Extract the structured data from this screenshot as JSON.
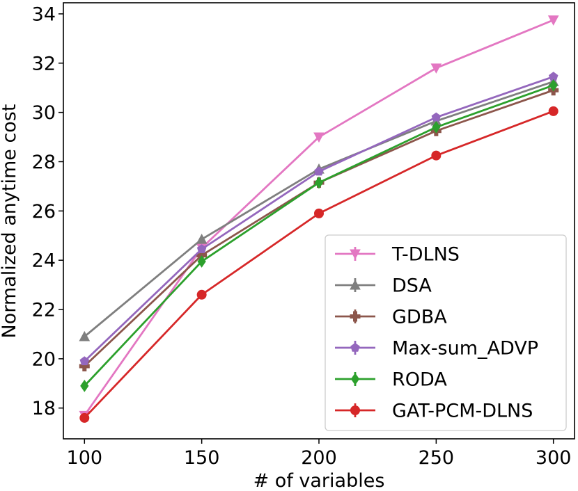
{
  "chart_data": {
    "type": "line",
    "title": "",
    "xlabel": "# of variables",
    "ylabel": "Normalized anytime cost",
    "x": [
      100,
      150,
      200,
      250,
      300
    ],
    "xlim": [
      91,
      309
    ],
    "ylim": [
      16.75,
      34.45
    ],
    "xticks": [
      100,
      150,
      200,
      250,
      300
    ],
    "yticks": [
      18,
      20,
      22,
      24,
      26,
      28,
      30,
      32,
      34
    ],
    "grid": false,
    "legend_position": "lower right",
    "series": [
      {
        "name": "T-DLNS",
        "values": [
          17.7,
          24.5,
          29.0,
          31.8,
          33.75
        ],
        "color": "#e377c2",
        "marker": "triangle-down"
      },
      {
        "name": "DSA",
        "values": [
          20.9,
          24.85,
          27.7,
          29.65,
          31.25
        ],
        "color": "#7f7f7f",
        "marker": "triangle-up"
      },
      {
        "name": "GDBA",
        "values": [
          19.7,
          24.2,
          27.15,
          29.25,
          30.9
        ],
        "color": "#8c564b",
        "marker": "plus"
      },
      {
        "name": "Max-sum_ADVP",
        "values": [
          19.9,
          24.45,
          27.6,
          29.8,
          31.45
        ],
        "color": "#9467bd",
        "marker": "pentagon"
      },
      {
        "name": "RODA",
        "values": [
          18.9,
          23.95,
          27.15,
          29.4,
          31.1
        ],
        "color": "#2ca02c",
        "marker": "diamond"
      },
      {
        "name": "GAT-PCM-DLNS",
        "values": [
          17.6,
          22.6,
          25.9,
          28.25,
          30.05
        ],
        "color": "#d62728",
        "marker": "circle"
      }
    ]
  }
}
